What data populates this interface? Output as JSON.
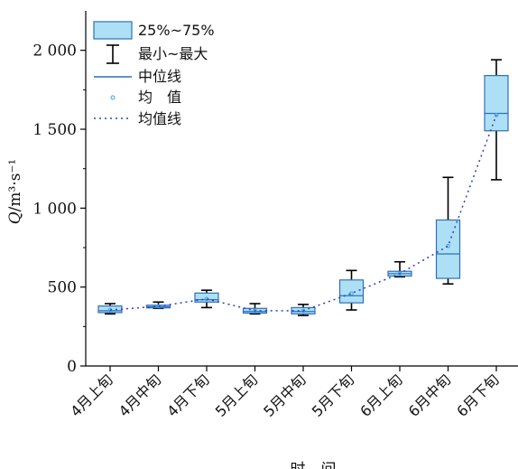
{
  "chart_data": {
    "type": "box",
    "categories": [
      "4月上旬",
      "4月中旬",
      "4月下旬",
      "5月上旬",
      "5月中旬",
      "5月下旬",
      "6月上旬",
      "6月中旬",
      "6月下旬"
    ],
    "boxes": [
      {
        "min": 330,
        "q1": 338,
        "median": 350,
        "q3": 380,
        "max": 395,
        "mean": 355
      },
      {
        "min": 365,
        "q1": 368,
        "median": 375,
        "q3": 385,
        "max": 405,
        "mean": 378
      },
      {
        "min": 370,
        "q1": 405,
        "median": 420,
        "q3": 462,
        "max": 480,
        "mean": 425
      },
      {
        "min": 330,
        "q1": 335,
        "median": 345,
        "q3": 365,
        "max": 395,
        "mean": 350
      },
      {
        "min": 320,
        "q1": 330,
        "median": 345,
        "q3": 370,
        "max": 390,
        "mean": 350
      },
      {
        "min": 355,
        "q1": 400,
        "median": 445,
        "q3": 545,
        "max": 605,
        "mean": 460
      },
      {
        "min": 565,
        "q1": 570,
        "median": 585,
        "q3": 600,
        "max": 660,
        "mean": 585
      },
      {
        "min": 520,
        "q1": 555,
        "median": 710,
        "q3": 925,
        "max": 1195,
        "mean": 760
      },
      {
        "min": 1180,
        "q1": 1490,
        "median": 1600,
        "q3": 1840,
        "max": 1940,
        "mean": 1590
      }
    ],
    "ylim": [
      0,
      2250
    ],
    "yticks": [
      0,
      500,
      1000,
      1500,
      2000
    ],
    "ytick_labels": [
      "0",
      "500",
      "1 000",
      "1 500",
      "2 000"
    ],
    "ylabel": {
      "symbol": "Q",
      "unit": "/m³·s⁻¹"
    },
    "xlabel": "时　间",
    "legend": {
      "position": "top-left",
      "items": [
        "25%~75%",
        "最小~最大",
        "中位线",
        "均　值",
        "均值线"
      ]
    },
    "colors": {
      "box_fill": "#aee0f5",
      "box_stroke": "#2f6fb8",
      "whisker": "#000000",
      "mean_marker": "#3aa0e0",
      "mean_line": "#2c3fc4"
    }
  }
}
